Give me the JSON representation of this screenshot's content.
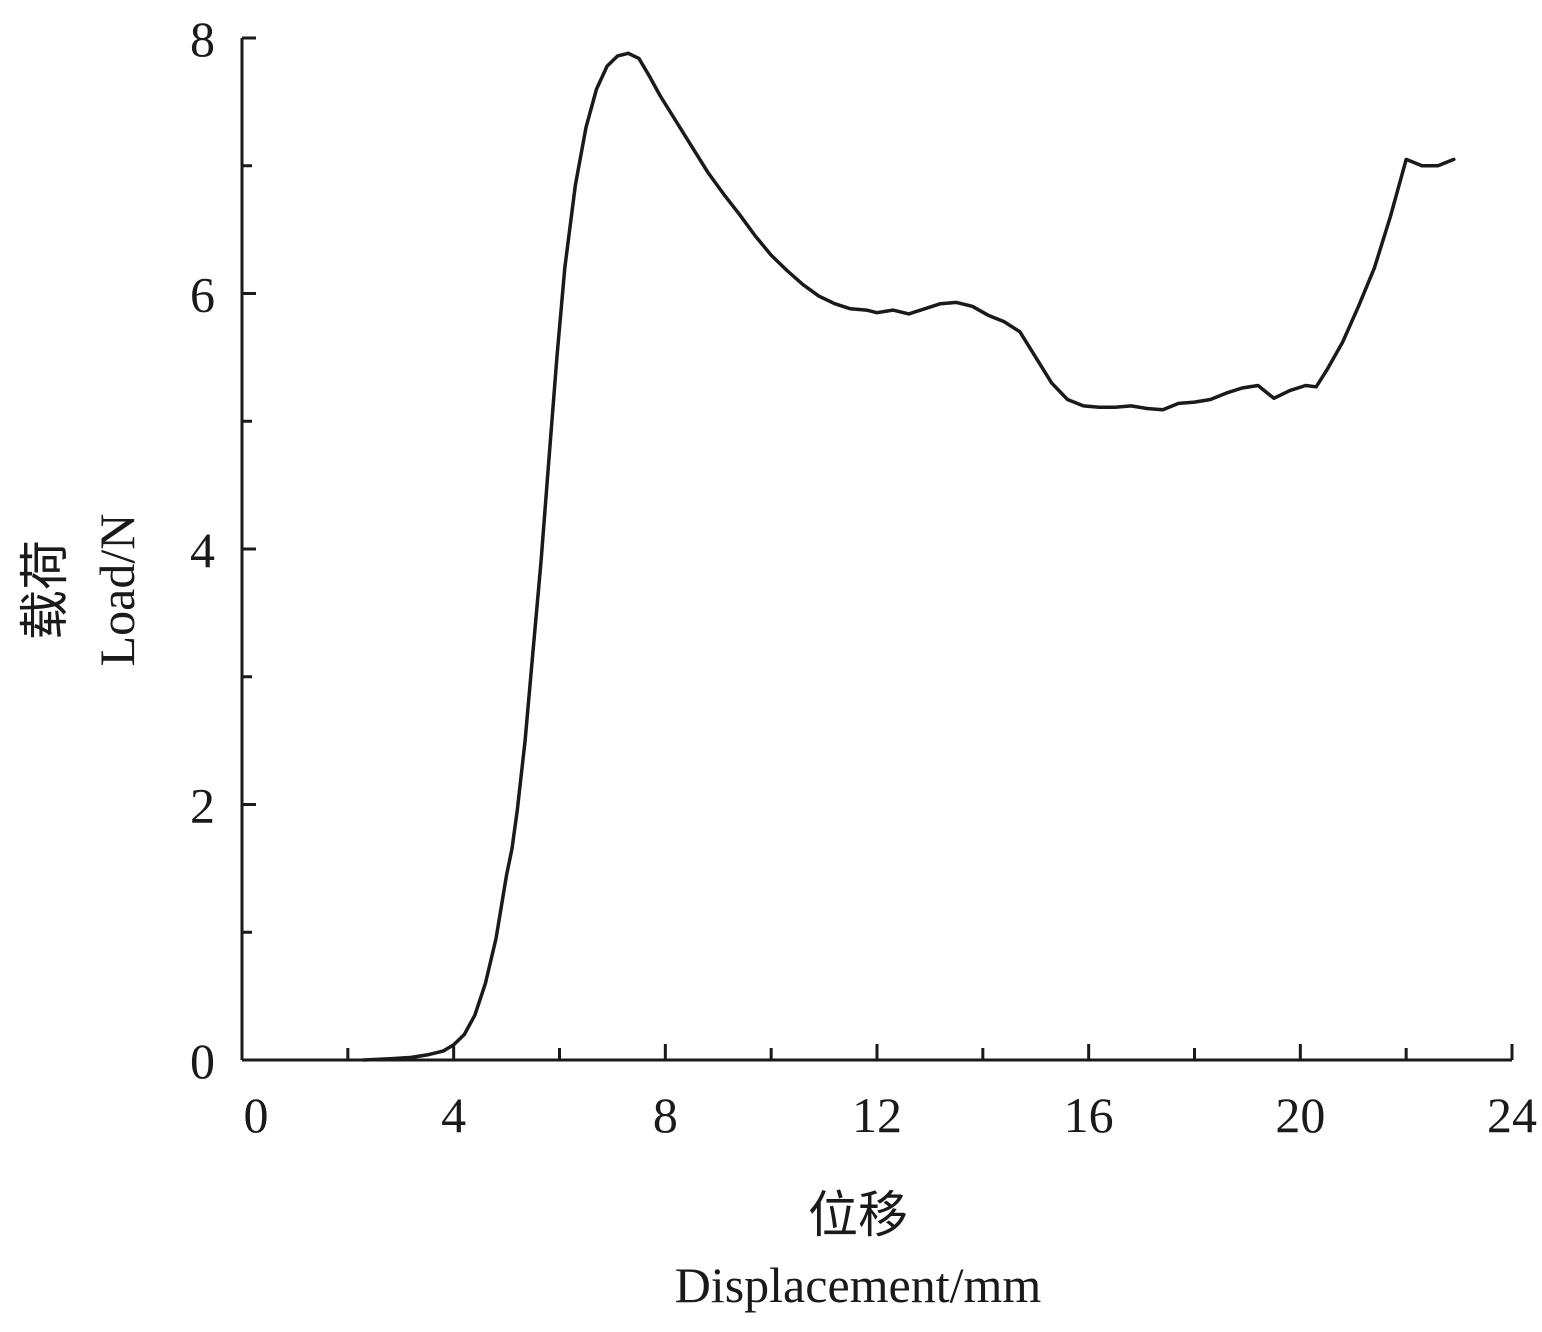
{
  "chart_data": {
    "type": "line",
    "xlabel_cn": "位移",
    "xlabel_en": "Displacement/mm",
    "ylabel_cn": "载荷",
    "ylabel_en": "Load/N",
    "xlim": [
      0,
      24
    ],
    "ylim": [
      0,
      8
    ],
    "x_ticks": [
      0,
      4,
      8,
      12,
      16,
      20,
      24
    ],
    "y_ticks": [
      0,
      2,
      4,
      6,
      8
    ],
    "x_minor_step": 2,
    "y_minor_step": 1,
    "grid": false,
    "line_color": "#1a1a1a",
    "series": [
      {
        "x": [
          2.3,
          2.8,
          3.2,
          3.5,
          3.8,
          4.0,
          4.2,
          4.4,
          4.6,
          4.8,
          5.0,
          5.1,
          5.2,
          5.35,
          5.5,
          5.65,
          5.8,
          5.95,
          6.1,
          6.3,
          6.5,
          6.7,
          6.9,
          7.1,
          7.3,
          7.5,
          7.7,
          7.9,
          8.2,
          8.5,
          8.8,
          9.1,
          9.4,
          9.7,
          10.0,
          10.3,
          10.6,
          10.9,
          11.2,
          11.5,
          11.8,
          12.0,
          12.3,
          12.6,
          12.9,
          13.2,
          13.5,
          13.8,
          14.1,
          14.4,
          14.7,
          15.0,
          15.3,
          15.6,
          15.9,
          16.2,
          16.5,
          16.8,
          17.1,
          17.4,
          17.7,
          18.0,
          18.3,
          18.6,
          18.9,
          19.2,
          19.5,
          19.8,
          20.1,
          20.3,
          20.5,
          20.8,
          21.1,
          21.4,
          21.7,
          22.0,
          22.3,
          22.6,
          22.9
        ],
        "y": [
          0.0,
          0.01,
          0.02,
          0.04,
          0.07,
          0.12,
          0.2,
          0.35,
          0.6,
          0.95,
          1.45,
          1.65,
          1.95,
          2.5,
          3.2,
          3.9,
          4.7,
          5.5,
          6.2,
          6.85,
          7.3,
          7.6,
          7.78,
          7.86,
          7.88,
          7.84,
          7.7,
          7.55,
          7.35,
          7.15,
          6.95,
          6.78,
          6.62,
          6.45,
          6.3,
          6.18,
          6.07,
          5.98,
          5.92,
          5.88,
          5.87,
          5.85,
          5.87,
          5.84,
          5.88,
          5.92,
          5.93,
          5.9,
          5.83,
          5.78,
          5.7,
          5.5,
          5.3,
          5.17,
          5.12,
          5.11,
          5.11,
          5.12,
          5.1,
          5.09,
          5.14,
          5.15,
          5.17,
          5.22,
          5.26,
          5.28,
          5.18,
          5.24,
          5.28,
          5.27,
          5.4,
          5.62,
          5.9,
          6.2,
          6.6,
          7.05,
          7.0,
          7.0,
          7.05
        ]
      }
    ]
  }
}
